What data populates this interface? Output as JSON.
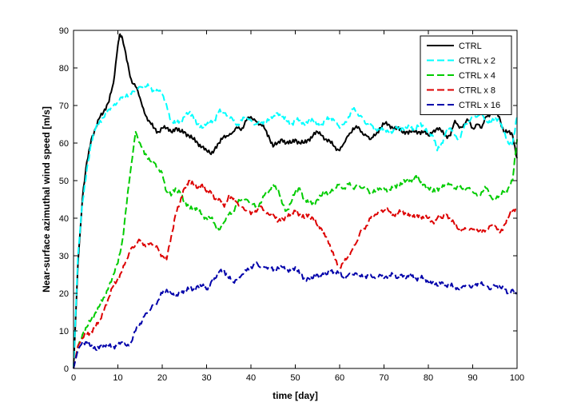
{
  "chart_data": {
    "type": "line",
    "title": "",
    "xlabel": "time [day]",
    "ylabel": "Near-surface azimuthal wind speed [m/s]",
    "xlim": [
      0,
      100
    ],
    "ylim": [
      0,
      90
    ],
    "xticks": [
      0,
      10,
      20,
      30,
      40,
      50,
      60,
      70,
      80,
      90,
      100
    ],
    "yticks": [
      0,
      10,
      20,
      30,
      40,
      50,
      60,
      70,
      80,
      90
    ],
    "grid": false,
    "legend_position": "top-right",
    "series": [
      {
        "name": "CTRL",
        "color": "#000000",
        "dash": "solid",
        "x": [
          0,
          1,
          2,
          3,
          4,
          5,
          6,
          7,
          8,
          9,
          10,
          10.5,
          11,
          12,
          13,
          14,
          15,
          16,
          17,
          18,
          19,
          20,
          21,
          22,
          23,
          24,
          25,
          26,
          27,
          28,
          29,
          30,
          31,
          32,
          33,
          34,
          35,
          36,
          37,
          38,
          39,
          40,
          41,
          42,
          43,
          44,
          45,
          46,
          47,
          48,
          49,
          50,
          51,
          52,
          53,
          54,
          55,
          56,
          57,
          58,
          59,
          60,
          61,
          62,
          63,
          64,
          65,
          66,
          67,
          68,
          69,
          70,
          71,
          72,
          73,
          74,
          75,
          76,
          77,
          78,
          79,
          80,
          81,
          82,
          83,
          84,
          85,
          86,
          87,
          88,
          89,
          90,
          91,
          92,
          93,
          94,
          95,
          96,
          97,
          98,
          99,
          100
        ],
        "y": [
          0,
          28,
          45,
          55,
          61,
          64,
          67,
          69,
          71,
          76,
          86,
          89,
          88,
          82,
          77,
          75,
          72,
          68,
          66,
          64,
          63,
          64,
          64,
          63,
          64,
          63,
          63,
          62,
          61,
          60,
          59,
          58,
          57,
          59,
          60,
          62,
          62,
          63,
          64,
          64,
          66,
          67,
          66,
          65,
          64,
          62,
          59,
          60,
          61,
          60,
          60,
          61,
          60,
          60,
          61,
          62,
          63,
          62,
          61,
          60,
          59,
          58,
          60,
          62,
          64,
          64,
          63,
          62,
          61,
          62,
          64,
          65,
          65,
          64,
          64,
          63,
          63,
          63,
          63,
          63,
          63,
          62,
          63,
          64,
          63,
          62,
          62,
          66,
          64,
          65,
          66,
          64,
          65,
          64,
          67,
          68,
          69,
          67,
          63,
          63,
          62,
          56
        ]
      },
      {
        "name": "CTRL x 2",
        "color": "#00ffff",
        "dash": "dashed",
        "x": [
          0,
          1,
          2,
          3,
          4,
          5,
          6,
          7,
          8,
          9,
          10,
          11,
          12,
          13,
          14,
          15,
          16,
          17,
          18,
          19,
          20,
          21,
          22,
          23,
          24,
          25,
          26,
          27,
          28,
          29,
          30,
          31,
          32,
          33,
          34,
          35,
          36,
          37,
          38,
          39,
          40,
          41,
          42,
          43,
          44,
          45,
          46,
          47,
          48,
          49,
          50,
          51,
          52,
          53,
          54,
          55,
          56,
          57,
          58,
          59,
          60,
          61,
          62,
          63,
          64,
          65,
          66,
          67,
          68,
          69,
          70,
          71,
          72,
          73,
          74,
          75,
          76,
          77,
          78,
          79,
          80,
          81,
          82,
          83,
          84,
          85,
          86,
          87,
          88,
          89,
          90,
          91,
          92,
          93,
          94,
          95,
          96,
          97,
          98,
          99,
          100
        ],
        "y": [
          0,
          30,
          44,
          53,
          60,
          64,
          66,
          67,
          69,
          70,
          71,
          72,
          73,
          73,
          74,
          75,
          75,
          75,
          74,
          74,
          73,
          70,
          66,
          65,
          66,
          67,
          68,
          67,
          65,
          64,
          65,
          66,
          66,
          69,
          68,
          67,
          66,
          65,
          66,
          67,
          66,
          65,
          65,
          66,
          66,
          67,
          68,
          67,
          66,
          65,
          66,
          66,
          65,
          66,
          66,
          65,
          65,
          66,
          67,
          66,
          64,
          65,
          67,
          69,
          68,
          67,
          65,
          65,
          64,
          63,
          64,
          63,
          63,
          64,
          64,
          64,
          64,
          64,
          65,
          64,
          63,
          62,
          58,
          60,
          63,
          64,
          62,
          61,
          64,
          66,
          67,
          67,
          68,
          66,
          65,
          67,
          66,
          63,
          60,
          60,
          67
        ]
      },
      {
        "name": "CTRL x 4",
        "color": "#00cc00",
        "dash": "dashed",
        "x": [
          0,
          1,
          2,
          3,
          4,
          5,
          6,
          7,
          8,
          9,
          10,
          11,
          12,
          13,
          14,
          15,
          16,
          17,
          18,
          19,
          20,
          21,
          22,
          23,
          24,
          25,
          26,
          27,
          28,
          29,
          30,
          31,
          32,
          33,
          34,
          35,
          36,
          37,
          38,
          39,
          40,
          41,
          42,
          43,
          44,
          45,
          46,
          47,
          48,
          49,
          50,
          51,
          52,
          53,
          54,
          55,
          56,
          57,
          58,
          59,
          60,
          61,
          62,
          63,
          64,
          65,
          66,
          67,
          68,
          69,
          70,
          71,
          72,
          73,
          74,
          75,
          76,
          77,
          78,
          79,
          80,
          81,
          82,
          83,
          84,
          85,
          86,
          87,
          88,
          89,
          90,
          91,
          92,
          93,
          94,
          95,
          96,
          97,
          98,
          99,
          100
        ],
        "y": [
          0,
          6,
          9,
          11,
          13,
          15,
          17,
          19,
          22,
          25,
          28,
          34,
          44,
          54,
          63,
          60,
          57,
          56,
          55,
          53,
          52,
          47,
          46,
          48,
          47,
          44,
          43,
          43,
          42,
          41,
          40,
          40,
          38,
          37,
          39,
          41,
          42,
          44,
          45,
          45,
          44,
          43,
          44,
          46,
          47,
          49,
          48,
          44,
          42,
          44,
          47,
          48,
          45,
          44,
          44,
          45,
          46,
          47,
          47,
          48,
          49,
          48,
          49,
          48,
          49,
          48,
          48,
          47,
          47,
          48,
          48,
          47,
          48,
          49,
          49,
          50,
          50,
          51,
          50,
          49,
          48,
          47,
          48,
          48,
          49,
          49,
          48,
          48,
          48,
          48,
          47,
          46,
          47,
          48,
          46,
          45,
          46,
          47,
          48,
          50,
          61
        ]
      },
      {
        "name": "CTRL x 8",
        "color": "#dd0000",
        "dash": "dashed",
        "x": [
          0,
          1,
          2,
          3,
          4,
          5,
          6,
          7,
          8,
          9,
          10,
          11,
          12,
          13,
          14,
          15,
          16,
          17,
          18,
          19,
          20,
          21,
          22,
          23,
          24,
          25,
          26,
          27,
          28,
          29,
          30,
          31,
          32,
          33,
          34,
          35,
          36,
          37,
          38,
          39,
          40,
          41,
          42,
          43,
          44,
          45,
          46,
          47,
          48,
          49,
          50,
          51,
          52,
          53,
          54,
          55,
          56,
          57,
          58,
          59,
          60,
          61,
          62,
          63,
          64,
          65,
          66,
          67,
          68,
          69,
          70,
          71,
          72,
          73,
          74,
          75,
          76,
          77,
          78,
          79,
          80,
          81,
          82,
          83,
          84,
          85,
          86,
          87,
          88,
          89,
          90,
          91,
          92,
          93,
          94,
          95,
          96,
          97,
          98,
          99,
          100
        ],
        "y": [
          0,
          6,
          8,
          9,
          10,
          11,
          13,
          16,
          19,
          22,
          24,
          26,
          29,
          32,
          33,
          34,
          33,
          33,
          33,
          32,
          30,
          29,
          35,
          41,
          44,
          48,
          50,
          49,
          48,
          49,
          47,
          47,
          45,
          45,
          43,
          46,
          45,
          44,
          43,
          42,
          41,
          42,
          43,
          42,
          41,
          41,
          39,
          40,
          40,
          41,
          42,
          41,
          40,
          41,
          40,
          38,
          37,
          35,
          32,
          29,
          27,
          28,
          30,
          32,
          34,
          37,
          38,
          40,
          41,
          42,
          42,
          42,
          41,
          41,
          42,
          41,
          41,
          40,
          41,
          40,
          40,
          39,
          40,
          40,
          41,
          40,
          38,
          37,
          37,
          37,
          37,
          37,
          36,
          37,
          38,
          38,
          36,
          38,
          40,
          42,
          43
        ]
      },
      {
        "name": "CTRL x 16",
        "color": "#0000aa",
        "dash": "dashed",
        "x": [
          0,
          1,
          2,
          3,
          4,
          5,
          6,
          7,
          8,
          9,
          10,
          11,
          12,
          13,
          14,
          15,
          16,
          17,
          18,
          19,
          20,
          21,
          22,
          23,
          24,
          25,
          26,
          27,
          28,
          29,
          30,
          31,
          32,
          33,
          34,
          35,
          36,
          37,
          38,
          39,
          40,
          41,
          42,
          43,
          44,
          45,
          46,
          47,
          48,
          49,
          50,
          51,
          52,
          53,
          54,
          55,
          56,
          57,
          58,
          59,
          60,
          61,
          62,
          63,
          64,
          65,
          66,
          67,
          68,
          69,
          70,
          71,
          72,
          73,
          74,
          75,
          76,
          77,
          78,
          79,
          80,
          81,
          82,
          83,
          84,
          85,
          86,
          87,
          88,
          89,
          90,
          91,
          92,
          93,
          94,
          95,
          96,
          97,
          98,
          99,
          100
        ],
        "y": [
          0,
          5,
          7,
          7,
          6,
          5,
          6,
          6,
          6,
          6,
          6,
          7,
          6,
          7,
          10,
          12,
          14,
          15,
          17,
          18,
          20,
          21,
          20,
          19,
          20,
          21,
          21,
          21,
          22,
          22,
          21,
          23,
          24,
          26,
          26,
          24,
          23,
          24,
          25,
          26,
          27,
          28,
          27,
          27,
          27,
          26,
          27,
          27,
          26,
          26,
          27,
          25,
          24,
          24,
          24,
          25,
          25,
          25,
          26,
          26,
          25,
          24,
          25,
          25,
          25,
          25,
          24,
          25,
          24,
          25,
          24,
          25,
          25,
          24,
          25,
          24,
          25,
          24,
          24,
          24,
          23,
          23,
          22,
          23,
          22,
          22,
          22,
          21,
          22,
          22,
          22,
          22,
          23,
          22,
          21,
          22,
          22,
          21,
          20,
          21,
          20
        ]
      }
    ]
  }
}
